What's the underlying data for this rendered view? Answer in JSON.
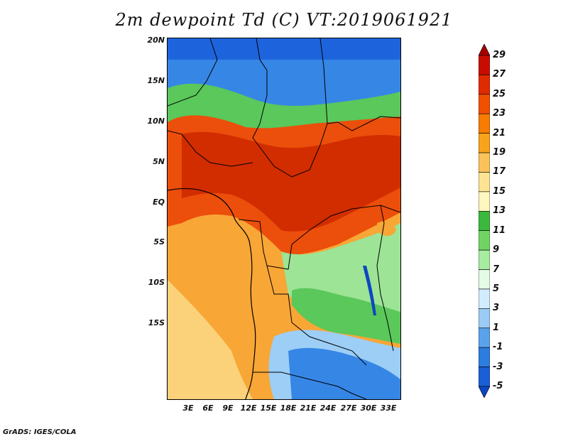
{
  "title": "2m dewpoint Td (C) VT:2019061921",
  "credit": "GrADS: IGES/COLA",
  "axes": {
    "y_labels": [
      "20N",
      "15N",
      "10N",
      "5N",
      "EQ",
      "5S",
      "10S",
      "15S"
    ],
    "x_labels": [
      "3E",
      "6E",
      "9E",
      "12E",
      "15E",
      "18E",
      "21E",
      "24E",
      "27E",
      "30E",
      "33E"
    ]
  },
  "colorbar": {
    "labels": [
      "29",
      "27",
      "25",
      "23",
      "21",
      "19",
      "17",
      "15",
      "13",
      "11",
      "9",
      "7",
      "5",
      "3",
      "1",
      "-1",
      "-3",
      "-5"
    ],
    "colors": [
      "#a50000",
      "#c80d00",
      "#e02a00",
      "#f05000",
      "#f77c00",
      "#f9a21c",
      "#fbc25a",
      "#fde493",
      "#fff6c0",
      "#3cb83c",
      "#70d464",
      "#a7eca0",
      "#e4fbe6",
      "#d2ecff",
      "#9cccf6",
      "#5aa2ec",
      "#2c7de0",
      "#1a5fd6",
      "#0f46c0"
    ]
  },
  "colors": {
    "deep_red": "#d12d00",
    "red_orange": "#ec4e0b",
    "orange": "#f7880e",
    "light_orange": "#f8a636",
    "yellow": "#fbd27a",
    "green": "#5ac85a",
    "light_green": "#9de496",
    "light_blue": "#9ccef6",
    "blue": "#3686e6",
    "deep_blue": "#1d64dc"
  }
}
